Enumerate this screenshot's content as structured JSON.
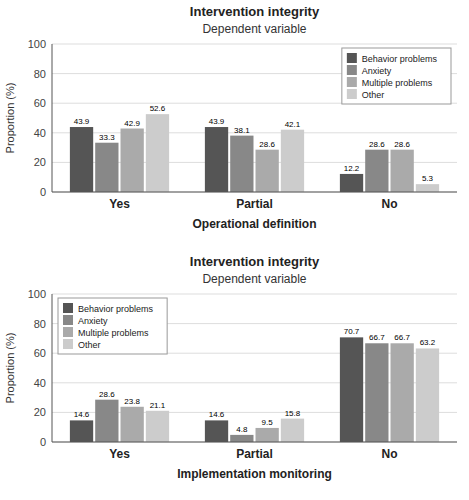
{
  "chart_data": [
    {
      "type": "bar",
      "title": "Intervention integrity",
      "subtitle": "Dependent variable",
      "xlabel": "Operational definition",
      "ylabel": "Proportion (%)",
      "categories": [
        "Yes",
        "Partial",
        "No"
      ],
      "series": [
        {
          "name": "Behavior problems",
          "color": "#555555",
          "values": [
            43.9,
            43.9,
            12.2
          ]
        },
        {
          "name": "Anxiety",
          "color": "#888888",
          "values": [
            33.3,
            38.1,
            28.6
          ]
        },
        {
          "name": "Multiple problems",
          "color": "#aaaaaa",
          "values": [
            42.9,
            28.6,
            28.6
          ]
        },
        {
          "name": "Other",
          "color": "#cccccc",
          "values": [
            52.6,
            42.1,
            5.3
          ]
        }
      ],
      "ylim": [
        0,
        100
      ],
      "yticks": [
        0,
        20,
        40,
        60,
        80,
        100
      ],
      "grid": true,
      "legend": "upper right",
      "data_labels": true
    },
    {
      "type": "bar",
      "title": "Intervention integrity",
      "subtitle": "Dependent variable",
      "xlabel": "Implementation monitoring",
      "ylabel": "Proportion (%)",
      "categories": [
        "Yes",
        "Partial",
        "No"
      ],
      "series": [
        {
          "name": "Behavior problems",
          "color": "#555555",
          "values": [
            14.6,
            14.6,
            70.7
          ]
        },
        {
          "name": "Anxiety",
          "color": "#888888",
          "values": [
            28.6,
            4.8,
            66.7
          ]
        },
        {
          "name": "Multiple problems",
          "color": "#aaaaaa",
          "values": [
            23.8,
            9.5,
            66.7
          ]
        },
        {
          "name": "Other",
          "color": "#cccccc",
          "values": [
            21.1,
            15.8,
            63.2
          ]
        }
      ],
      "ylim": [
        0,
        100
      ],
      "yticks": [
        0,
        20,
        40,
        60,
        80,
        100
      ],
      "grid": true,
      "legend": "upper left",
      "data_labels": true
    }
  ]
}
